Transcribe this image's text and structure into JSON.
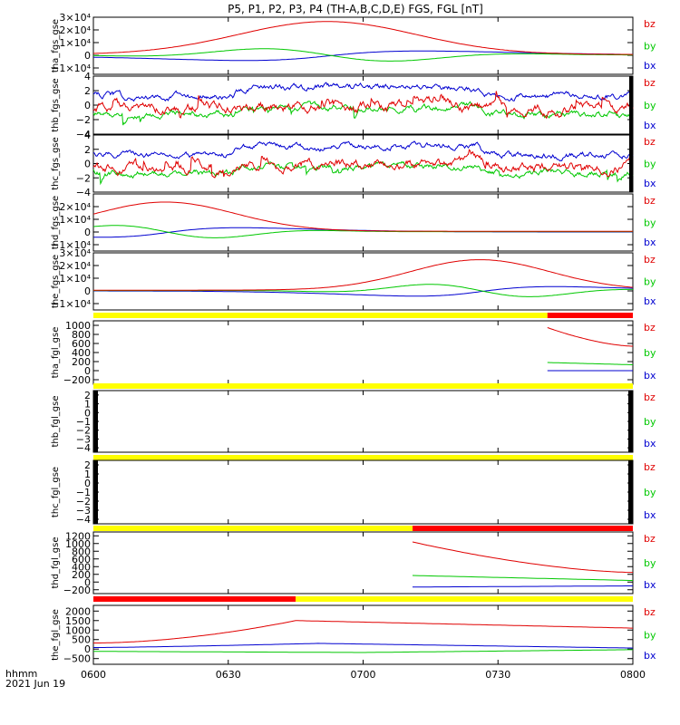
{
  "chart_data": {
    "type": "line",
    "title": "P5, P1, P2, P3, P4 (TH-A,B,C,D,E) FGS, FGL [nT]",
    "x_tick_labels": [
      "0600",
      "0630",
      "0700",
      "0730",
      "0800"
    ],
    "x_footer": {
      "line1": "hhmm",
      "line2": "2021 Jun 19"
    },
    "legend": {
      "bz": {
        "label": "bz",
        "color": "#e00000"
      },
      "by": {
        "label": "by",
        "color": "#00c800"
      },
      "bx": {
        "label": "bx",
        "color": "#0000d0"
      }
    },
    "bar_colors": {
      "yellow": "#ffff00",
      "red": "#ff0000"
    },
    "panels": [
      {
        "ylabel": "tha_fgs_gse",
        "kind": "fgs_big",
        "ylim": [
          -15000,
          30000
        ],
        "ticks": [
          {
            "v": 30000,
            "t": "3×10⁴"
          },
          {
            "v": 20000,
            "t": "2×10⁴"
          },
          {
            "v": 10000,
            "t": "1×10⁴"
          },
          {
            "v": 0,
            "t": "0"
          },
          {
            "v": -10000,
            "t": "−1×10⁴"
          }
        ],
        "peak_min": 52,
        "peak_bz": 26000,
        "width": 28
      },
      {
        "ylabel": "thb_fgs_gse",
        "kind": "fgs_small",
        "ylim": [
          -4,
          4
        ],
        "ticks": [
          {
            "v": 4,
            "t": "4"
          },
          {
            "v": 2,
            "t": "2"
          },
          {
            "v": 0,
            "t": "0"
          },
          {
            "v": -2,
            "t": "−2"
          },
          {
            "v": -4,
            "t": "−4"
          }
        ]
      },
      {
        "ylabel": "thc_fgs_gse",
        "kind": "fgs_small",
        "ylim": [
          -4,
          4
        ],
        "ticks": [
          {
            "v": 4,
            "t": "4"
          },
          {
            "v": 2,
            "t": "2"
          },
          {
            "v": 0,
            "t": "0"
          },
          {
            "v": -2,
            "t": "−2"
          },
          {
            "v": -4,
            "t": "−4"
          }
        ]
      },
      {
        "ylabel": "thd_fgs_gse",
        "kind": "fgs_big",
        "ylim": [
          -15000,
          30000
        ],
        "ticks": [
          {
            "v": 20000,
            "t": "2×10⁴"
          },
          {
            "v": 10000,
            "t": "1×10⁴"
          },
          {
            "v": 0,
            "t": "0"
          },
          {
            "v": -10000,
            "t": "−1×10⁴"
          }
        ],
        "peak_min": 16,
        "peak_bz": 23000,
        "width": 22
      },
      {
        "ylabel": "the_fgs_gse",
        "kind": "fgs_big",
        "ylim": [
          -15000,
          30000
        ],
        "ticks": [
          {
            "v": 30000,
            "t": "3×10⁴"
          },
          {
            "v": 20000,
            "t": "2×10⁴"
          },
          {
            "v": 10000,
            "t": "1×10⁴"
          },
          {
            "v": 0,
            "t": "0"
          },
          {
            "v": -10000,
            "t": "−1×10⁴"
          }
        ],
        "peak_min": 86,
        "peak_bz": 24000,
        "width": 22
      },
      {
        "ylabel": "tha_fgl_gse",
        "kind": "fgl",
        "ylim": [
          -300,
          1100
        ],
        "ticks": [
          {
            "v": 1000,
            "t": "1000"
          },
          {
            "v": 800,
            "t": "800"
          },
          {
            "v": 600,
            "t": "600"
          },
          {
            "v": 400,
            "t": "400"
          },
          {
            "v": 200,
            "t": "200"
          },
          {
            "v": 0,
            "t": "0"
          },
          {
            "v": -200,
            "t": "−200"
          }
        ],
        "start_min": 101,
        "bz": [
          950,
          540
        ],
        "by": [
          180,
          130
        ],
        "bx": [
          0,
          0
        ],
        "bar": [
          {
            "from": 0,
            "to": 101,
            "c": "yellow"
          },
          {
            "from": 101,
            "to": 120,
            "c": "red"
          }
        ]
      },
      {
        "ylabel": "thb_fgl_gse",
        "kind": "empty",
        "ylim": [
          -4.5,
          2.5
        ],
        "ticks": [
          {
            "v": 2,
            "t": "2"
          },
          {
            "v": 1,
            "t": "1"
          },
          {
            "v": 0,
            "t": "0"
          },
          {
            "v": -1,
            "t": "−1"
          },
          {
            "v": -2,
            "t": "−2"
          },
          {
            "v": -3,
            "t": "−3"
          },
          {
            "v": -4,
            "t": "−4"
          }
        ],
        "bar": [
          {
            "from": 0,
            "to": 120,
            "c": "yellow"
          }
        ]
      },
      {
        "ylabel": "thc_fgl_gse",
        "kind": "empty",
        "ylim": [
          -4.5,
          2.5
        ],
        "ticks": [
          {
            "v": 2,
            "t": "2"
          },
          {
            "v": 1,
            "t": "1"
          },
          {
            "v": 0,
            "t": "0"
          },
          {
            "v": -1,
            "t": "−1"
          },
          {
            "v": -2,
            "t": "−2"
          },
          {
            "v": -3,
            "t": "−3"
          },
          {
            "v": -4,
            "t": "−4"
          }
        ],
        "bar": [
          {
            "from": 0,
            "to": 120,
            "c": "yellow"
          }
        ]
      },
      {
        "ylabel": "thd_fgl_gse",
        "kind": "fgl",
        "ylim": [
          -300,
          1300
        ],
        "ticks": [
          {
            "v": 1200,
            "t": "1200"
          },
          {
            "v": 1000,
            "t": "1000"
          },
          {
            "v": 800,
            "t": "800"
          },
          {
            "v": 600,
            "t": "600"
          },
          {
            "v": 400,
            "t": "400"
          },
          {
            "v": 200,
            "t": "200"
          },
          {
            "v": 0,
            "t": "0"
          },
          {
            "v": -200,
            "t": "−200"
          }
        ],
        "start_min": 71,
        "bz": [
          1040,
          250
        ],
        "by": [
          170,
          40
        ],
        "bx": [
          -130,
          -100
        ],
        "bar": [
          {
            "from": 0,
            "to": 71,
            "c": "yellow"
          },
          {
            "from": 71,
            "to": 120,
            "c": "red"
          }
        ]
      },
      {
        "ylabel": "the_fgl_gse",
        "kind": "fgl_e",
        "ylim": [
          -800,
          2300
        ],
        "ticks": [
          {
            "v": 2000,
            "t": "2000"
          },
          {
            "v": 1500,
            "t": "1500"
          },
          {
            "v": 1000,
            "t": "1000"
          },
          {
            "v": 500,
            "t": "500"
          },
          {
            "v": 0,
            "t": "0"
          },
          {
            "v": -500,
            "t": "−500"
          }
        ],
        "bar": [
          {
            "from": 0,
            "to": 45,
            "c": "red"
          },
          {
            "from": 45,
            "to": 120,
            "c": "yellow"
          }
        ]
      }
    ]
  }
}
